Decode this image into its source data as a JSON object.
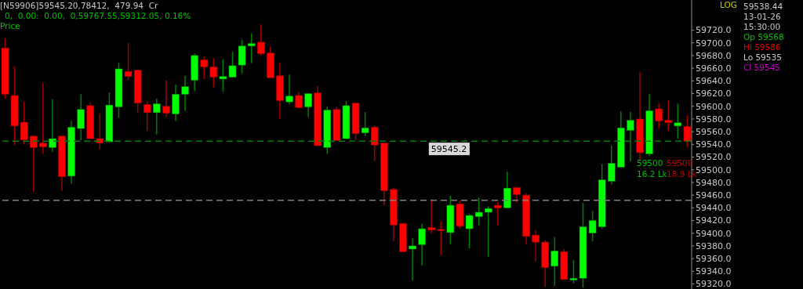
{
  "chart_data": {
    "type": "candlestick",
    "title": "[N59906]59545.20,78412,  479.94  Cr",
    "subtitle": "0,  0.00:  0.00,  0,59767.55,59312.05, 0.16%",
    "annotations": [
      "Price",
      "LOG",
      "59538.44",
      "13-01-26",
      "15:30:00",
      "Op 59568",
      "Hi 59586",
      "Lo 59535",
      "Cl 59545",
      "59500",
      "59500",
      "16.2 Lk",
      "18.9 Lk"
    ],
    "categories": [
      null,
      null,
      null,
      null,
      null,
      null,
      null,
      null,
      null,
      null,
      null,
      null,
      null,
      null,
      null,
      null,
      null,
      null,
      null,
      null,
      null,
      null,
      null,
      null,
      null,
      null,
      null,
      null,
      null,
      null,
      null,
      null,
      null,
      null,
      null,
      null,
      null,
      null,
      null,
      null,
      null,
      null,
      null,
      null,
      null,
      null,
      null,
      null,
      null,
      null,
      null,
      null,
      null,
      null,
      null,
      null,
      null,
      null,
      null,
      null,
      null,
      null,
      null,
      null,
      null,
      null,
      null,
      null,
      null,
      null,
      null,
      null,
      null
    ],
    "ohlc": [
      [
        59692,
        59707,
        59612,
        59619
      ],
      [
        59617,
        59663,
        59539,
        59569
      ],
      [
        59575,
        59607,
        59540,
        59547
      ],
      [
        59553,
        59553,
        59465,
        59535
      ],
      [
        59542,
        59636,
        59525,
        59536
      ],
      [
        59535,
        59611,
        59528,
        59549
      ],
      [
        59553,
        59553,
        59467,
        59489
      ],
      [
        59490,
        59577,
        59478,
        59567
      ],
      [
        59565,
        59619,
        59546,
        59595
      ],
      [
        59601,
        59606,
        59549,
        59549
      ],
      [
        59549,
        59589,
        59532,
        59542
      ],
      [
        59544,
        59622,
        59543,
        59602
      ],
      [
        59599,
        59669,
        59582,
        59659
      ],
      [
        59655,
        59700,
        59641,
        59647
      ],
      [
        59657,
        59658,
        59590,
        59605
      ],
      [
        59603,
        59608,
        59561,
        59590
      ],
      [
        59590,
        59612,
        59556,
        59604
      ],
      [
        59600,
        59641,
        59583,
        59589
      ],
      [
        59588,
        59634,
        59577,
        59619
      ],
      [
        59619,
        59648,
        59593,
        59631
      ],
      [
        59641,
        59683,
        59624,
        59680
      ],
      [
        59673,
        59678,
        59643,
        59662
      ],
      [
        59662,
        59676,
        59630,
        59646
      ],
      [
        59643,
        59674,
        59623,
        59647
      ],
      [
        59646,
        59686,
        59645,
        59664
      ],
      [
        59665,
        59705,
        59652,
        59695
      ],
      [
        59695,
        59715,
        59668,
        59699
      ],
      [
        59701,
        59729,
        59680,
        59683
      ],
      [
        59684,
        59694,
        59645,
        59645
      ],
      [
        59648,
        59669,
        59580,
        59609
      ],
      [
        59607,
        59650,
        59603,
        59616
      ],
      [
        59617,
        59623,
        59597,
        59598
      ],
      [
        59599,
        59620,
        59583,
        59620
      ],
      [
        59621,
        59632,
        59538,
        59538
      ],
      [
        59535,
        59600,
        59525,
        59594
      ],
      [
        59595,
        59600,
        59546,
        59546
      ],
      [
        59549,
        59608,
        59548,
        59601
      ],
      [
        59605,
        59605,
        59547,
        59557
      ],
      [
        59558,
        59591,
        59553,
        59566
      ],
      [
        59567,
        59570,
        59514,
        59539
      ],
      [
        59542,
        59542,
        59444,
        59467
      ],
      [
        59469,
        59472,
        59387,
        59413
      ],
      [
        59415,
        59416,
        59371,
        59371
      ],
      [
        59375,
        59392,
        59325,
        59380
      ],
      [
        59382,
        59415,
        59349,
        59407
      ],
      [
        59409,
        59453,
        59400,
        59405
      ],
      [
        59406,
        59419,
        59366,
        59404
      ],
      [
        59401,
        59459,
        59383,
        59444
      ],
      [
        59446,
        59451,
        59407,
        59411
      ],
      [
        59407,
        59430,
        59376,
        59428
      ],
      [
        59426,
        59456,
        59412,
        59433
      ],
      [
        59433,
        59442,
        59363,
        59439
      ],
      [
        59444,
        59449,
        59412,
        59440
      ],
      [
        59440,
        59497,
        59440,
        59471
      ],
      [
        59472,
        59472,
        59448,
        59461
      ],
      [
        59460,
        59463,
        59382,
        59395
      ],
      [
        59397,
        59405,
        59356,
        59386
      ],
      [
        59386,
        59389,
        59315,
        59346
      ],
      [
        59348,
        59394,
        59317,
        59372
      ],
      [
        59371,
        59375,
        59327,
        59327
      ],
      [
        59326,
        59358,
        59321,
        59329
      ],
      [
        59329,
        59448,
        59314,
        59410
      ],
      [
        59400,
        59435,
        59387,
        59420
      ],
      [
        59410,
        59509,
        59407,
        59484
      ],
      [
        59482,
        59538,
        59477,
        59510
      ],
      [
        59504,
        59592,
        59504,
        59566
      ],
      [
        59562,
        59591,
        59513,
        59578
      ],
      [
        59580,
        59654,
        59514,
        59527
      ],
      [
        59525,
        59619,
        59522,
        59593
      ],
      [
        59596,
        59605,
        59565,
        59577
      ],
      [
        59578,
        59609,
        59561,
        59574
      ],
      [
        59569,
        59604,
        59549,
        59574
      ],
      [
        59568,
        59586,
        59535,
        59545
      ]
    ],
    "colors": [
      "#ff0000",
      "#ff0000",
      "#ff0000",
      "#ff0000",
      "#ff0000",
      "#00ff00",
      "#ff0000",
      "#00ff00",
      "#00ff00",
      "#ff0000",
      "#ff0000",
      "#00ff00",
      "#00ff00",
      "#ff0000",
      "#ff0000",
      "#ff0000",
      "#00ff00",
      "#ff0000",
      "#00ff00",
      "#00ff00",
      "#00ff00",
      "#ff0000",
      "#ff0000",
      "#00ff00",
      "#00ff00",
      "#00ff00",
      "#00ff00",
      "#ff0000",
      "#ff0000",
      "#ff0000",
      "#00ff00",
      "#ff0000",
      "#00ff00",
      "#ff0000",
      "#00ff00",
      "#ff0000",
      "#00ff00",
      "#ff0000",
      "#00ff00",
      "#ff0000",
      "#ff0000",
      "#ff0000",
      "#ff0000",
      "#00ff00",
      "#00ff00",
      "#ff0000",
      "#ff0000",
      "#00ff00",
      "#ff0000",
      "#00ff00",
      "#00ff00",
      "#00ff00",
      "#ff0000",
      "#00ff00",
      "#ff0000",
      "#ff0000",
      "#ff0000",
      "#ff0000",
      "#00ff00",
      "#ff0000",
      "#00ff00",
      "#00ff00",
      "#00ff00",
      "#00ff00",
      "#00ff00",
      "#00ff00",
      "#00ff00",
      "#ff0000",
      "#00ff00",
      "#ff0000",
      "#ff0000",
      "#00ff00",
      "#ff0000"
    ],
    "ylim": [
      59312.05,
      59767.55
    ],
    "yticks": [
      {
        "value": 59320,
        "label": "59320.0"
      },
      {
        "value": 59340,
        "label": "59340.0"
      },
      {
        "value": 59360,
        "label": "59360.0"
      },
      {
        "value": 59380,
        "label": "59380.0"
      },
      {
        "value": 59400,
        "label": "59400.0"
      },
      {
        "value": 59420,
        "label": "59420.0"
      },
      {
        "value": 59440,
        "label": "59440.0"
      },
      {
        "value": 59460,
        "label": "59460.0"
      },
      {
        "value": 59480,
        "label": "59480.0"
      },
      {
        "value": 59500,
        "label": "59500.0"
      },
      {
        "value": 59520,
        "label": "59520.0"
      },
      {
        "value": 59540,
        "label": "59540.0"
      },
      {
        "value": 59560,
        "label": "59560.0"
      },
      {
        "value": 59580,
        "label": "59580.0"
      },
      {
        "value": 59600,
        "label": "59600.0"
      },
      {
        "value": 59620,
        "label": "59620.0"
      },
      {
        "value": 59640,
        "label": "59640.0"
      },
      {
        "value": 59660,
        "label": "59660.0"
      },
      {
        "value": 59680,
        "label": "59680.0"
      },
      {
        "value": 59700,
        "label": "59700.0"
      },
      {
        "value": 59720,
        "label": "59720.0"
      }
    ],
    "tick_labels": "y",
    "ref_lines": [
      {
        "axis": "y",
        "value": 59545.2,
        "label": "59545.2",
        "color": "#008000",
        "line_style": "dashed"
      },
      {
        "axis": "y",
        "value": 59452,
        "color": "#808080",
        "line_style": "dashed"
      }
    ]
  }
}
